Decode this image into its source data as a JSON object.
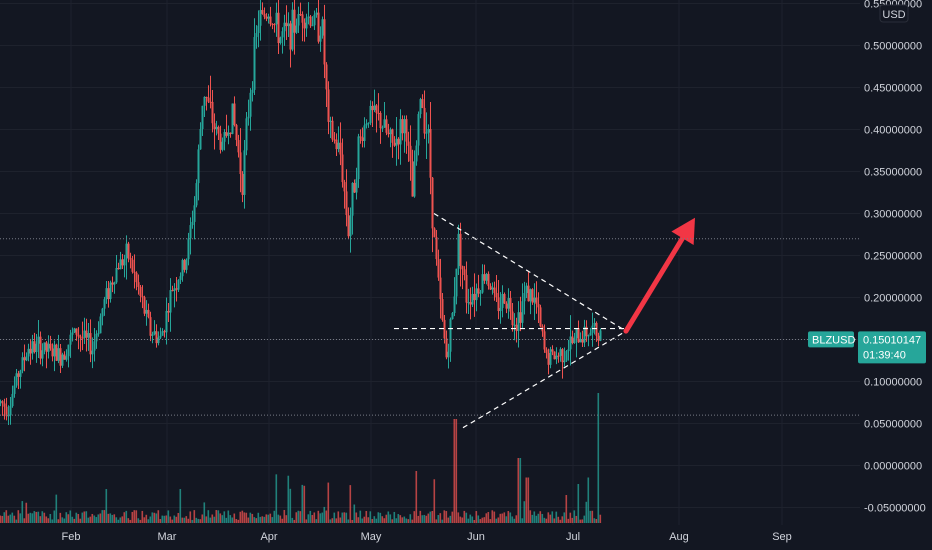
{
  "chart_data": {
    "type": "candlestick",
    "symbol": "BLZUSD",
    "currency_label": "USD",
    "price_axis": {
      "ticks": [
        "0.55000000",
        "0.50000000",
        "0.45000000",
        "0.40000000",
        "0.35000000",
        "0.30000000",
        "0.25000000",
        "0.20000000",
        "0.15000000",
        "0.10000000",
        "0.05000000",
        "0.00000000",
        "-0.05000000"
      ],
      "tick_values": [
        0.55,
        0.5,
        0.45,
        0.4,
        0.35,
        0.3,
        0.25,
        0.2,
        0.15,
        0.1,
        0.05,
        0.0,
        -0.05
      ],
      "range": [
        -0.065,
        0.565
      ]
    },
    "time_axis": {
      "labels": [
        "Feb",
        "Mar",
        "Apr",
        "May",
        "Jun",
        "Jul",
        "Aug",
        "Sep"
      ]
    },
    "last_price": {
      "value": 0.15010147,
      "label": "0.15010147",
      "countdown": "01:39:40",
      "color": "#26a69a"
    },
    "horizontal_levels": [
      0.27,
      0.15,
      0.06
    ],
    "price_path": [
      {
        "t": 0,
        "p": 0.075
      },
      {
        "t": 8,
        "p": 0.07
      },
      {
        "t": 18,
        "p": 0.11
      },
      {
        "t": 28,
        "p": 0.14
      },
      {
        "t": 40,
        "p": 0.14
      },
      {
        "t": 60,
        "p": 0.13
      },
      {
        "t": 75,
        "p": 0.16
      },
      {
        "t": 92,
        "p": 0.14
      },
      {
        "t": 105,
        "p": 0.2
      },
      {
        "t": 118,
        "p": 0.24
      },
      {
        "t": 128,
        "p": 0.25
      },
      {
        "t": 140,
        "p": 0.2
      },
      {
        "t": 150,
        "p": 0.16
      },
      {
        "t": 160,
        "p": 0.15
      },
      {
        "t": 172,
        "p": 0.21
      },
      {
        "t": 185,
        "p": 0.24
      },
      {
        "t": 195,
        "p": 0.32
      },
      {
        "t": 203,
        "p": 0.45
      },
      {
        "t": 212,
        "p": 0.41
      },
      {
        "t": 222,
        "p": 0.38
      },
      {
        "t": 232,
        "p": 0.42
      },
      {
        "t": 242,
        "p": 0.34
      },
      {
        "t": 250,
        "p": 0.45
      },
      {
        "t": 258,
        "p": 0.53
      },
      {
        "t": 268,
        "p": 0.54
      },
      {
        "t": 280,
        "p": 0.51
      },
      {
        "t": 292,
        "p": 0.52
      },
      {
        "t": 302,
        "p": 0.54
      },
      {
        "t": 312,
        "p": 0.53
      },
      {
        "t": 322,
        "p": 0.52
      },
      {
        "t": 328,
        "p": 0.4
      },
      {
        "t": 340,
        "p": 0.37
      },
      {
        "t": 348,
        "p": 0.28
      },
      {
        "t": 358,
        "p": 0.38
      },
      {
        "t": 368,
        "p": 0.42
      },
      {
        "t": 380,
        "p": 0.41
      },
      {
        "t": 392,
        "p": 0.38
      },
      {
        "t": 405,
        "p": 0.41
      },
      {
        "t": 412,
        "p": 0.32
      },
      {
        "t": 420,
        "p": 0.44
      },
      {
        "t": 428,
        "p": 0.39
      },
      {
        "t": 433,
        "p": 0.28
      },
      {
        "t": 440,
        "p": 0.19
      },
      {
        "t": 446,
        "p": 0.13
      },
      {
        "t": 452,
        "p": 0.18
      },
      {
        "t": 458,
        "p": 0.27
      },
      {
        "t": 466,
        "p": 0.2
      },
      {
        "t": 476,
        "p": 0.21
      },
      {
        "t": 486,
        "p": 0.23
      },
      {
        "t": 496,
        "p": 0.19
      },
      {
        "t": 506,
        "p": 0.2
      },
      {
        "t": 516,
        "p": 0.17
      },
      {
        "t": 526,
        "p": 0.21
      },
      {
        "t": 536,
        "p": 0.19
      },
      {
        "t": 545,
        "p": 0.13
      },
      {
        "t": 556,
        "p": 0.13
      },
      {
        "t": 566,
        "p": 0.14
      },
      {
        "t": 576,
        "p": 0.15
      },
      {
        "t": 586,
        "p": 0.16
      },
      {
        "t": 595,
        "p": 0.16
      },
      {
        "t": 600,
        "p": 0.15
      }
    ],
    "volume_spikes": [
      {
        "t": 455,
        "v": 0.8
      },
      {
        "t": 598,
        "v": 1.0
      },
      {
        "t": 416,
        "v": 0.4
      },
      {
        "t": 519,
        "v": 0.5
      },
      {
        "t": 527,
        "v": 0.35
      },
      {
        "t": 578,
        "v": 0.3
      },
      {
        "t": 588,
        "v": 0.35
      }
    ],
    "annotations": {
      "resistance_line": {
        "from": {
          "t": 434,
          "p": 0.3
        },
        "to": {
          "t": 626,
          "p": 0.16
        }
      },
      "support_line": {
        "from": {
          "t": 463,
          "p": 0.045
        },
        "to": {
          "t": 626,
          "p": 0.16
        }
      },
      "neckline": {
        "from": {
          "t": 394,
          "p": 0.163
        },
        "to": {
          "t": 626,
          "p": 0.163
        }
      },
      "arrow": {
        "from": {
          "t": 626,
          "p": 0.16
        },
        "to": {
          "t": 695,
          "p": 0.295
        },
        "color": "#f23645"
      }
    },
    "colors": {
      "background": "#131722",
      "grid": "#1e222d",
      "up": "#26a69a",
      "down": "#ef5350",
      "level_line": "#787b86"
    }
  }
}
